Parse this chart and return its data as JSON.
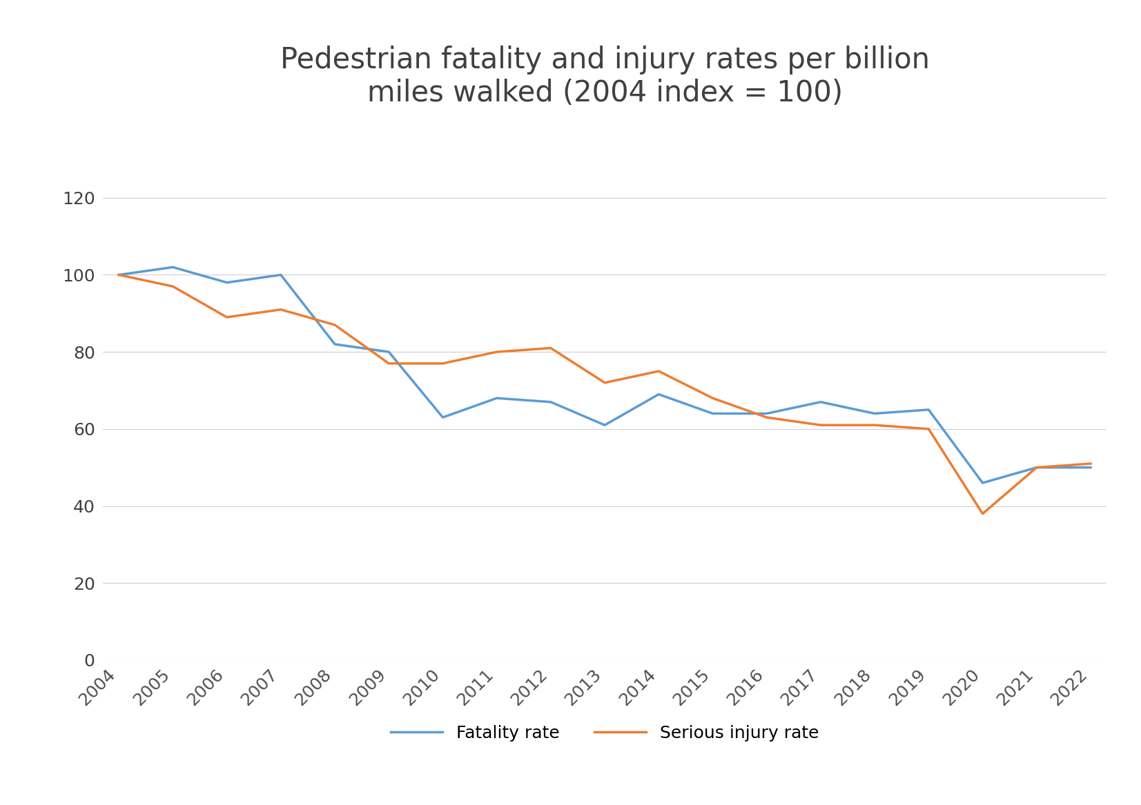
{
  "title": "Pedestrian fatality and injury rates per billion\nmiles walked (2004 index = 100)",
  "years": [
    2004,
    2005,
    2006,
    2007,
    2008,
    2009,
    2010,
    2011,
    2012,
    2013,
    2014,
    2015,
    2016,
    2017,
    2018,
    2019,
    2020,
    2021,
    2022
  ],
  "fatality_rate": [
    100,
    102,
    98,
    100,
    82,
    80,
    63,
    68,
    67,
    61,
    69,
    64,
    64,
    67,
    64,
    65,
    46,
    50,
    50
  ],
  "serious_injury_rate": [
    100,
    97,
    89,
    91,
    87,
    77,
    77,
    80,
    81,
    72,
    75,
    68,
    63,
    61,
    61,
    60,
    38,
    50,
    51
  ],
  "fatality_color": "#5B9BD5",
  "injury_color": "#ED7D31",
  "background_color": "#ffffff",
  "grid_color": "#d0d0d0",
  "title_color": "#404040",
  "fatality_label": "Fatality rate",
  "injury_label": "Serious injury rate",
  "ylim": [
    0,
    140
  ],
  "yticks": [
    0,
    20,
    40,
    60,
    80,
    100,
    120
  ],
  "title_fontsize": 30,
  "tick_fontsize": 18,
  "legend_fontsize": 18,
  "line_width": 2.5
}
